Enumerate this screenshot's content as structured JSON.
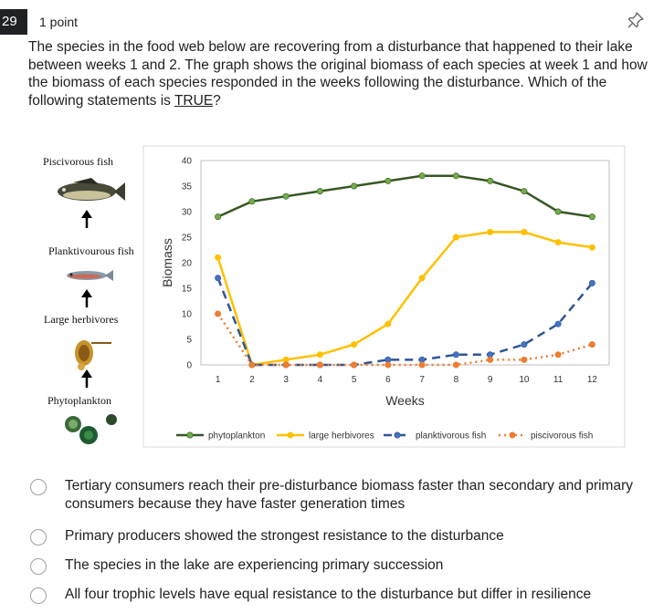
{
  "question": {
    "number": "29",
    "points": "1 point",
    "text_before": "The species in the food web below are recovering from a disturbance that happened to their lake between weeks 1 and 2. The graph shows the original biomass of each species at week 1 and how the biomass of each species responded in the weeks following the disturbance.  Which of the following statements is ",
    "text_underlined": "TRUE",
    "text_after": "?"
  },
  "icons": {
    "pin": "pin-icon"
  },
  "food_web": {
    "levels": [
      "Piscivorous fish",
      "Planktivourous fish",
      "Large herbivores",
      "Phytoplankton"
    ]
  },
  "chart_data": {
    "type": "line",
    "x": [
      1,
      2,
      3,
      4,
      5,
      6,
      7,
      8,
      9,
      10,
      11,
      12
    ],
    "xlabel": "Weeks",
    "ylabel": "Biomass",
    "ylim": [
      0,
      40
    ],
    "yticks": [
      0,
      5,
      10,
      15,
      20,
      25,
      30,
      35,
      40
    ],
    "grid": false,
    "legend_position": "bottom",
    "series": [
      {
        "name": "phytoplankton",
        "color": "#375623",
        "marker": "#70ad47",
        "dash": "solid",
        "values": [
          29,
          32,
          33,
          34,
          35,
          36,
          37,
          37,
          36,
          34,
          30,
          29
        ]
      },
      {
        "name": "large herbivores",
        "color": "#ffc000",
        "marker": "#ffc000",
        "dash": "solid",
        "values": [
          21,
          0,
          1,
          2,
          4,
          8,
          17,
          25,
          26,
          26,
          24,
          23
        ]
      },
      {
        "name": "planktivorous fish",
        "color": "#2f5597",
        "marker": "#4472c4",
        "dash": "dashed",
        "values": [
          17,
          0,
          0,
          0,
          0,
          1,
          1,
          2,
          2,
          4,
          8,
          16
        ]
      },
      {
        "name": "piscivorous fish",
        "color": "#ed7d31",
        "marker": "#ed7d31",
        "dash": "dotted",
        "values": [
          10,
          0,
          0,
          0,
          0,
          0,
          0,
          0,
          1,
          1,
          2,
          4
        ]
      }
    ]
  },
  "options": [
    "Tertiary consumers reach their pre-disturbance biomass faster than secondary and primary consumers because they have faster generation times",
    "Primary producers showed the strongest resistance to the disturbance",
    "The species in the lake are experiencing primary succession",
    "All four trophic levels have equal resistance to the disturbance but differ in resilience"
  ]
}
